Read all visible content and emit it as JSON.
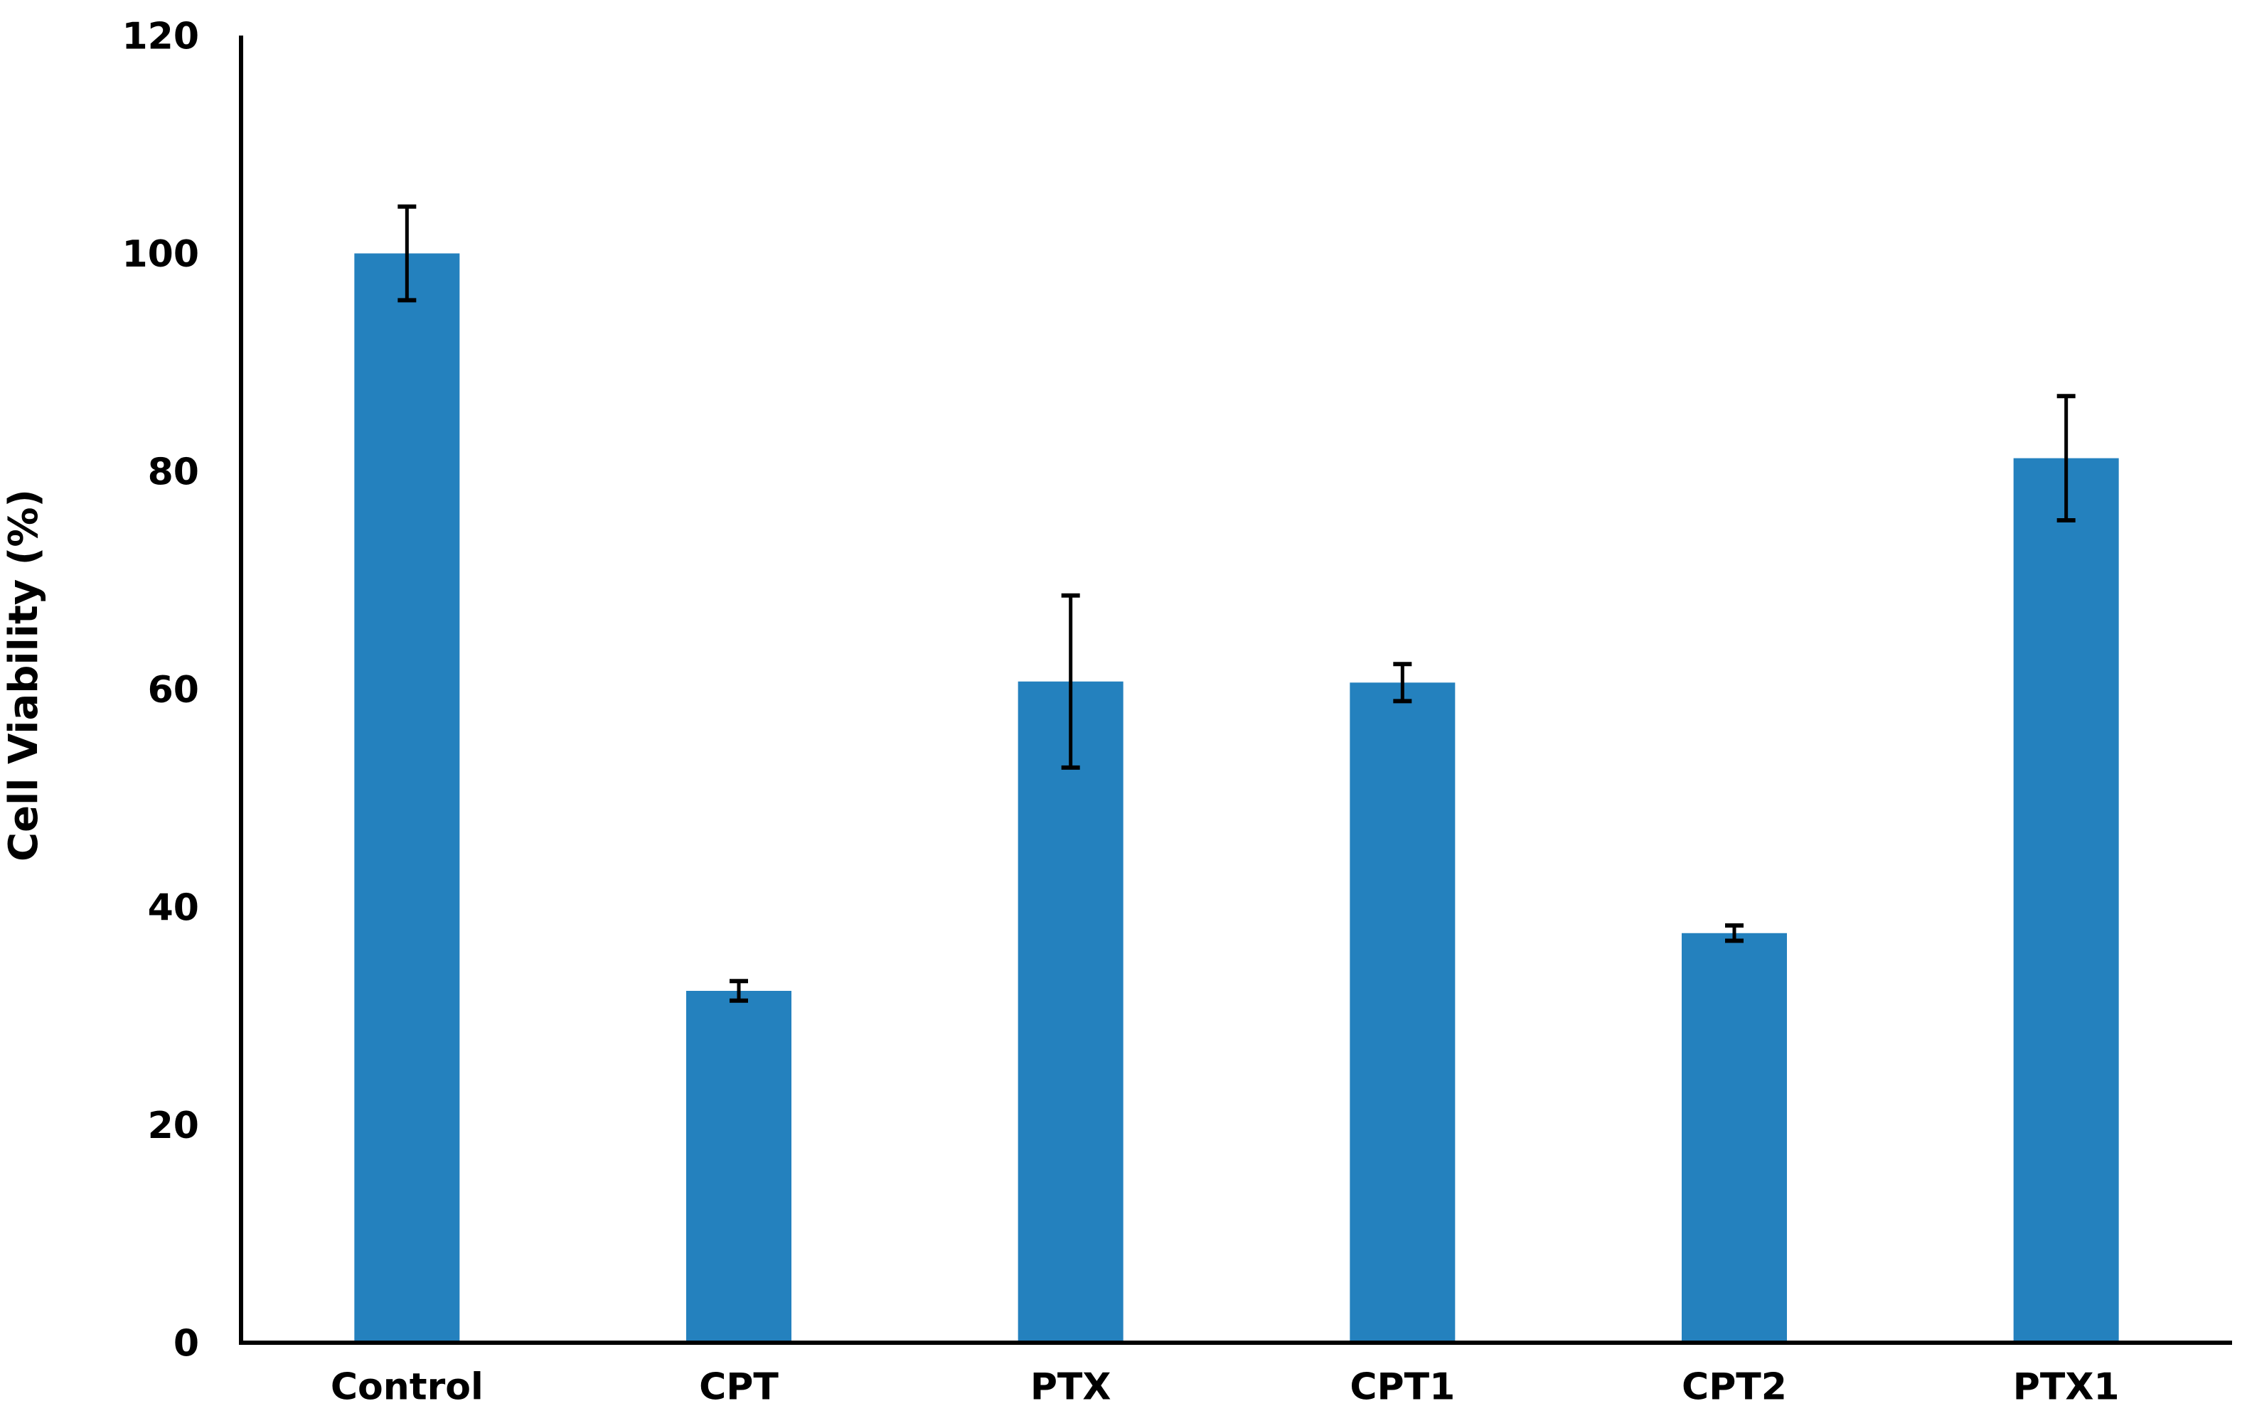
{
  "page": {
    "background_color": "#ffffff"
  },
  "chart_data": {
    "type": "bar",
    "title": "",
    "ylabel": "Cell Viability (%)",
    "xlabel": "",
    "categories": [
      "Control",
      "CPT",
      "PTX",
      "CPT1",
      "CPT2",
      "PTX1"
    ],
    "series": [
      {
        "name": "Cell Viability (%)",
        "values": [
          100,
          32.3,
          60.7,
          60.6,
          37.6,
          81.2
        ],
        "errors": [
          4.3,
          0.9,
          7.9,
          1.7,
          0.7,
          5.7
        ]
      }
    ],
    "ylim": [
      0,
      120
    ],
    "ytick_step": 20,
    "ytick_labels": [
      "0",
      "20",
      "40",
      "60",
      "80",
      "100",
      "120"
    ],
    "grid": false,
    "legend_position": "none",
    "bar_color": "#2481BE",
    "axis_color": "#000000",
    "error_bar_color": "#000000"
  }
}
